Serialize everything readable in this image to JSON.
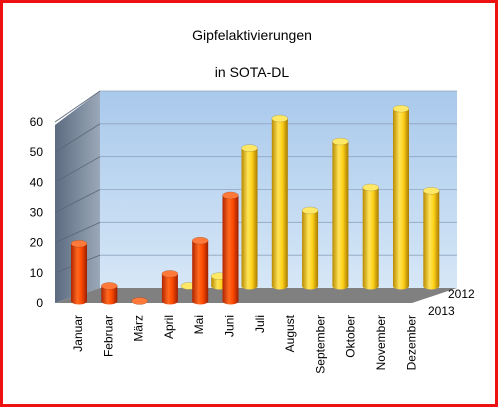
{
  "chart_data": {
    "type": "bar",
    "title": "Gipfelaktivierungen",
    "subtitle": "in SOTA-DL",
    "categories": [
      "Januar",
      "Februar",
      "März",
      "April",
      "Mai",
      "Juni",
      "Juli",
      "August",
      "September",
      "Oktober",
      "November",
      "Dezember"
    ],
    "series": [
      {
        "name": "2013",
        "values": [
          19,
          5,
          0,
          9,
          20,
          35,
          null,
          null,
          null,
          null,
          null,
          null
        ]
      },
      {
        "name": "2012",
        "values": [
          null,
          null,
          null,
          0,
          3,
          42,
          51,
          23,
          44,
          30,
          54,
          29
        ]
      }
    ],
    "yticks": [
      0,
      10,
      20,
      30,
      40,
      50,
      60
    ],
    "ylim": [
      0,
      60
    ],
    "grid": true,
    "legend": "none",
    "colors": {
      "series_2013": "#ff4a00",
      "series_2012": "#ffd21a",
      "wall": "#bcd8f2",
      "side_wall": "#8a97a8",
      "floor": "#808080",
      "frame": "#ee1111"
    }
  }
}
